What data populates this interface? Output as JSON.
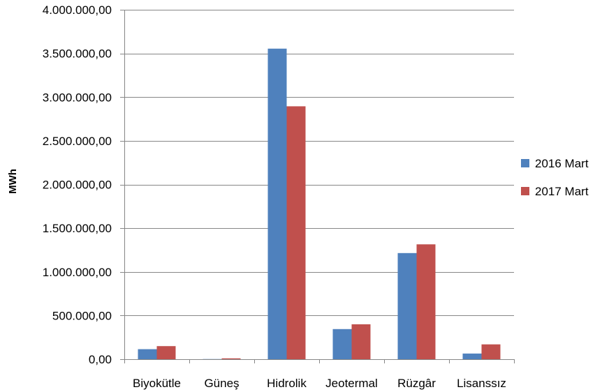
{
  "chart_data": {
    "type": "bar",
    "title": "",
    "xlabel": "",
    "ylabel": "MWh",
    "ylim": [
      0,
      4000000
    ],
    "yticks": [
      0,
      500000,
      1000000,
      1500000,
      2000000,
      2500000,
      3000000,
      3500000,
      4000000
    ],
    "ytick_labels": [
      "0,00",
      "500.000,00",
      "1.000.000,00",
      "1.500.000,00",
      "2.000.000,00",
      "2.500.000,00",
      "3.000.000,00",
      "3.500.000,00",
      "4.000.000,00"
    ],
    "categories": [
      "Biyokütle",
      "Güneş",
      "Hidrolik",
      "Jeotermal",
      "Rüzgâr",
      "Lisanssız"
    ],
    "series": [
      {
        "name": "2016 Mart",
        "color": "#4f81bd",
        "values": [
          115000,
          2000,
          3555000,
          345000,
          1215000,
          65000
        ]
      },
      {
        "name": "2017 Mart",
        "color": "#c0504d",
        "values": [
          150000,
          10000,
          2895000,
          400000,
          1315000,
          170000
        ]
      }
    ],
    "grid": true,
    "legend": "right"
  }
}
